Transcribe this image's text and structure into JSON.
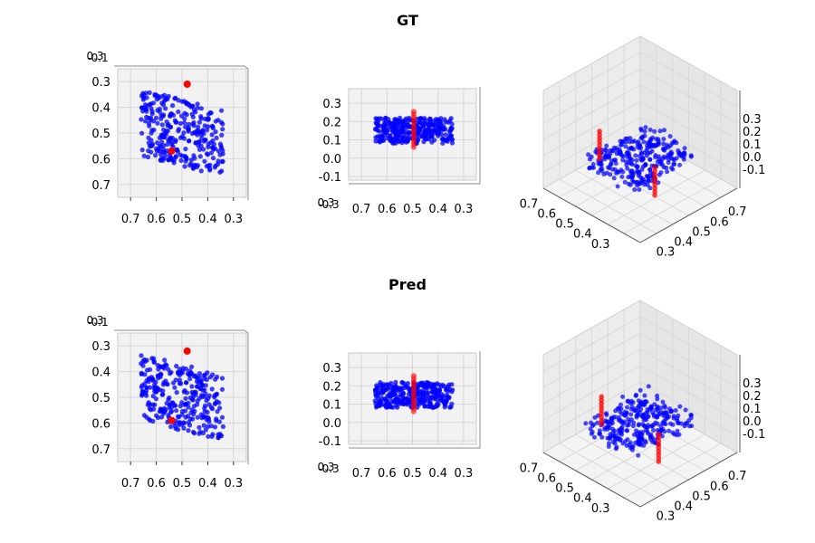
{
  "chart_data": [
    {
      "title": "GT",
      "type": "scatter",
      "views": [
        {
          "view": "top",
          "xticks": [
            "0.7",
            "0.6",
            "0.5",
            "0.4",
            "0.3"
          ],
          "yticks": [
            "0.3",
            "0.4",
            "0.5",
            "0.6",
            "0.7"
          ],
          "zticks_overlap": [
            "0.3",
            "-0.1"
          ],
          "xlim": [
            0.25,
            0.75
          ],
          "ylim": [
            0.25,
            0.75
          ]
        },
        {
          "view": "front",
          "xticks": [
            "0.7",
            "0.6",
            "0.5",
            "0.4",
            "0.3"
          ],
          "zticks": [
            "0.3",
            "0.2",
            "0.1",
            "0.0",
            "-0.1"
          ],
          "yticks_overlap": [
            "0.3",
            "-0.3"
          ],
          "xlim": [
            0.25,
            0.75
          ],
          "zlim": [
            -0.12,
            0.38
          ]
        },
        {
          "view": "iso",
          "xticks": [
            "0.7",
            "0.6",
            "0.5",
            "0.4",
            "0.3"
          ],
          "yticks": [
            "0.3",
            "0.4",
            "0.5",
            "0.6",
            "0.7"
          ],
          "zticks": [
            "0.3",
            "0.2",
            "0.1",
            "0.0",
            "-0.1"
          ]
        }
      ],
      "series": [
        {
          "name": "",
          "color": "#0000ff",
          "center": [
            0.5,
            0.5,
            0.15
          ],
          "extent": [
            0.16,
            0.13,
            0.07
          ],
          "count": 300
        },
        {
          "name": "",
          "color": "#ff0000",
          "points": [
            [
              0.48,
              0.32,
              0.15
            ],
            [
              0.54,
              0.58,
              0.15
            ]
          ]
        }
      ]
    },
    {
      "title": "Pred",
      "type": "scatter",
      "views": [
        {
          "view": "top",
          "xticks": [
            "0.7",
            "0.6",
            "0.5",
            "0.4",
            "0.3"
          ],
          "yticks": [
            "0.3",
            "0.4",
            "0.5",
            "0.6",
            "0.7"
          ],
          "zticks_overlap": [
            "0.3",
            "-0.1"
          ],
          "xlim": [
            0.25,
            0.75
          ],
          "ylim": [
            0.25,
            0.75
          ]
        },
        {
          "view": "front",
          "xticks": [
            "0.7",
            "0.6",
            "0.5",
            "0.4",
            "0.3"
          ],
          "zticks": [
            "0.3",
            "0.2",
            "0.1",
            "0.0",
            "-0.1"
          ],
          "yticks_overlap": [
            "0.3",
            "-0.3"
          ],
          "xlim": [
            0.25,
            0.75
          ],
          "zlim": [
            -0.12,
            0.38
          ]
        },
        {
          "view": "iso",
          "xticks": [
            "0.7",
            "0.6",
            "0.5",
            "0.4",
            "0.3"
          ],
          "yticks": [
            "0.3",
            "0.4",
            "0.5",
            "0.6",
            "0.7"
          ],
          "zticks": [
            "0.3",
            "0.2",
            "0.1",
            "0.0",
            "-0.1"
          ]
        }
      ],
      "series": [
        {
          "name": "",
          "color": "#0000ff",
          "center": [
            0.5,
            0.5,
            0.15
          ],
          "extent": [
            0.16,
            0.13,
            0.07
          ],
          "count": 300
        },
        {
          "name": "",
          "color": "#ff0000",
          "points": [
            [
              0.48,
              0.33,
              0.15
            ],
            [
              0.54,
              0.6,
              0.15
            ]
          ]
        }
      ]
    }
  ]
}
